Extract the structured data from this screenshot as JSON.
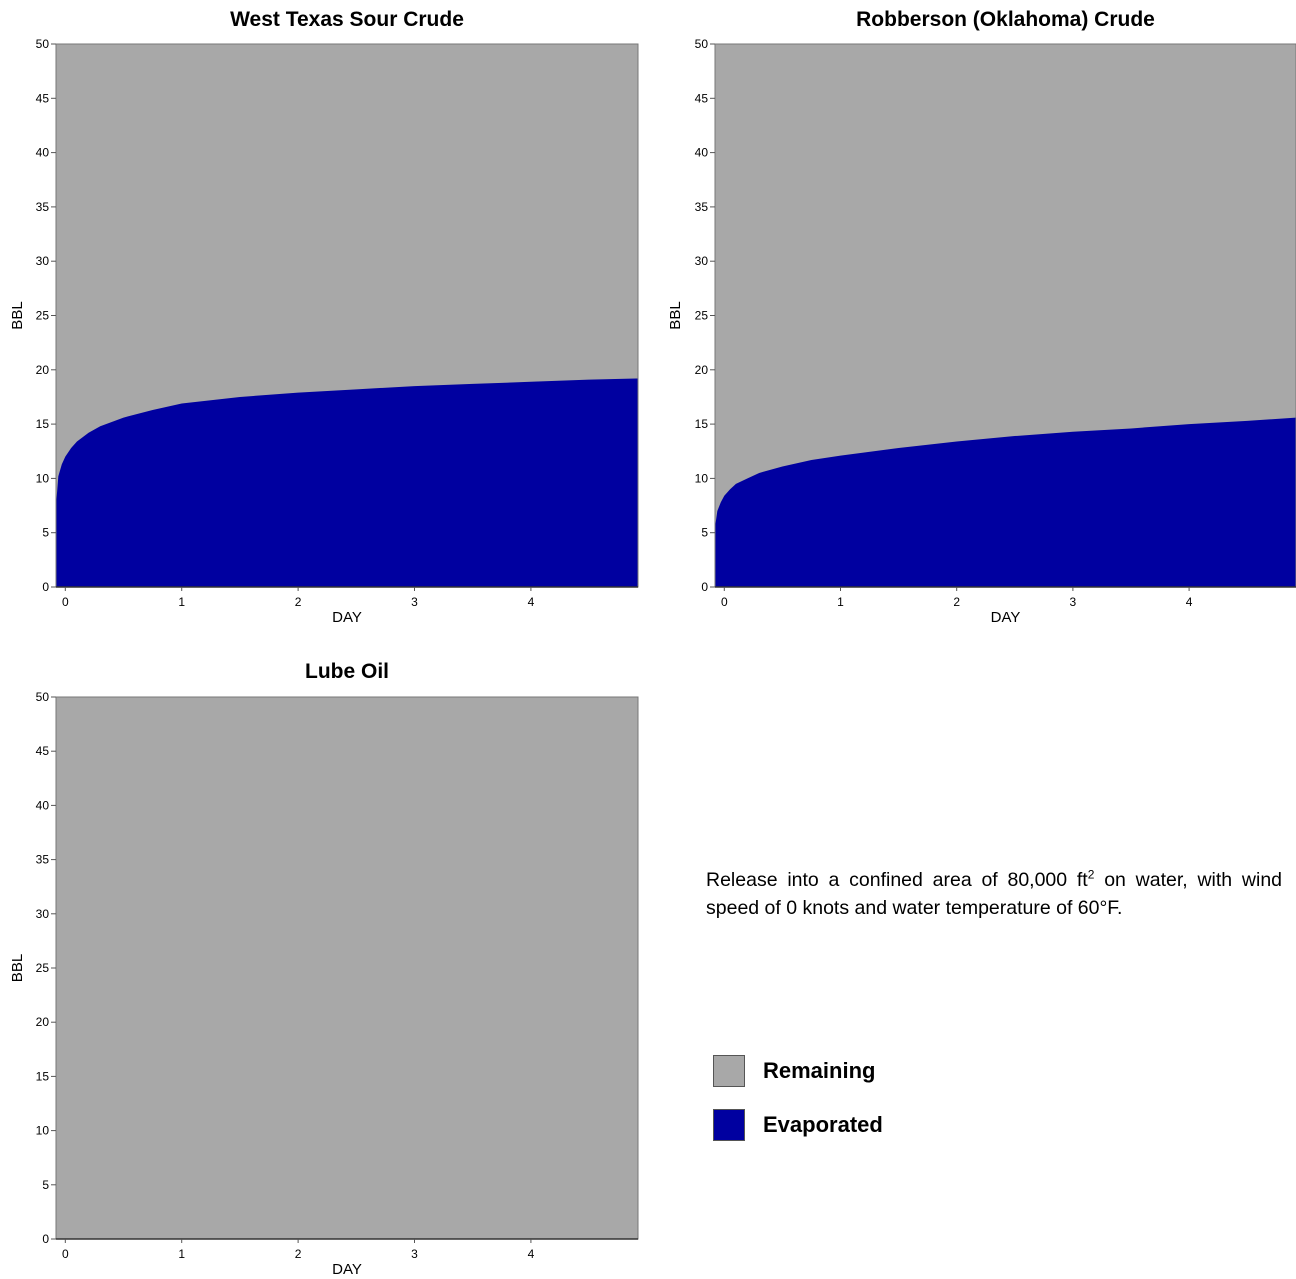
{
  "note": {
    "before_sup": "Release into a confined area of 80,000 ft",
    "sup": "2",
    "after_sup": " on water, with wind speed of 0 knots and water temperature of 60°F."
  },
  "colors": {
    "remaining": "#a8a8a8",
    "evaporated": "#0000a0"
  },
  "legend": [
    {
      "label": "Remaining",
      "color": "#a8a8a8"
    },
    {
      "label": "Evaporated",
      "color": "#0000a0"
    }
  ],
  "chart_data": [
    {
      "type": "area",
      "title": "West Texas Sour Crude",
      "xlabel": "DAY",
      "ylabel": "BBL",
      "xlim": [
        -0.08,
        4.92
      ],
      "ylim": [
        0,
        50
      ],
      "xticks": [
        0,
        1,
        2,
        3,
        4
      ],
      "yticks": [
        0,
        5,
        10,
        15,
        20,
        25,
        30,
        35,
        40,
        45,
        50
      ],
      "grid": false,
      "total": 50,
      "series": [
        {
          "name": "Evaporated",
          "x": [
            -0.08,
            -0.06,
            -0.03,
            0,
            0.05,
            0.1,
            0.2,
            0.3,
            0.5,
            0.75,
            1,
            1.5,
            2,
            2.5,
            3,
            3.5,
            4,
            4.5,
            4.92
          ],
          "values": [
            7.5,
            10.2,
            11.3,
            12.0,
            12.8,
            13.4,
            14.2,
            14.8,
            15.6,
            16.3,
            16.9,
            17.5,
            17.9,
            18.2,
            18.5,
            18.7,
            18.9,
            19.1,
            19.2
          ]
        },
        {
          "name": "Remaining",
          "x": [
            -0.08,
            4.92
          ],
          "values": [
            50,
            50
          ]
        }
      ]
    },
    {
      "type": "area",
      "title": "Robberson (Oklahoma) Crude",
      "xlabel": "DAY",
      "ylabel": "BBL",
      "xlim": [
        -0.08,
        4.92
      ],
      "ylim": [
        0,
        50
      ],
      "xticks": [
        0,
        1,
        2,
        3,
        4
      ],
      "yticks": [
        0,
        5,
        10,
        15,
        20,
        25,
        30,
        35,
        40,
        45,
        50
      ],
      "grid": false,
      "total": 50,
      "series": [
        {
          "name": "Evaporated",
          "x": [
            -0.08,
            -0.06,
            -0.03,
            0,
            0.05,
            0.1,
            0.2,
            0.3,
            0.5,
            0.75,
            1,
            1.5,
            2,
            2.5,
            3,
            3.5,
            4,
            4.5,
            4.92
          ],
          "values": [
            5.5,
            7.0,
            7.8,
            8.4,
            9.0,
            9.5,
            10.0,
            10.5,
            11.1,
            11.7,
            12.1,
            12.8,
            13.4,
            13.9,
            14.3,
            14.6,
            15.0,
            15.3,
            15.6
          ]
        },
        {
          "name": "Remaining",
          "x": [
            -0.08,
            4.92
          ],
          "values": [
            50,
            50
          ]
        }
      ]
    },
    {
      "type": "area",
      "title": "Lube Oil",
      "xlabel": "DAY",
      "ylabel": "BBL",
      "xlim": [
        -0.08,
        4.92
      ],
      "ylim": [
        0,
        50
      ],
      "xticks": [
        0,
        1,
        2,
        3,
        4
      ],
      "yticks": [
        0,
        5,
        10,
        15,
        20,
        25,
        30,
        35,
        40,
        45,
        50
      ],
      "grid": false,
      "total": 50,
      "series": [
        {
          "name": "Evaporated",
          "x": [
            -0.08,
            4.92
          ],
          "values": [
            0,
            0
          ]
        },
        {
          "name": "Remaining",
          "x": [
            -0.08,
            4.92
          ],
          "values": [
            50,
            50
          ]
        }
      ]
    }
  ]
}
